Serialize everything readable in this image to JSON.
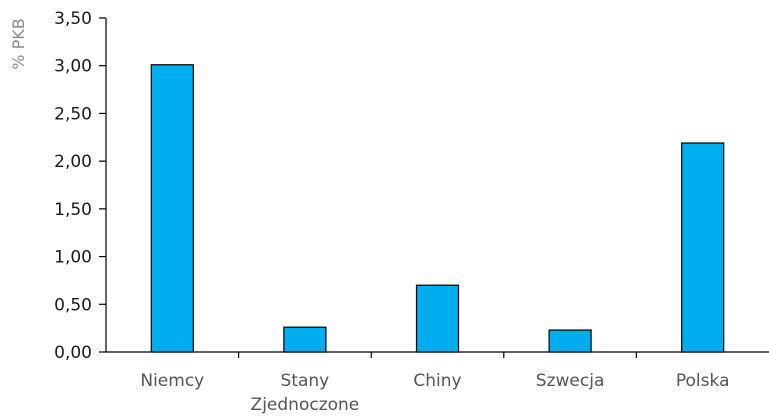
{
  "chart_data": {
    "type": "bar",
    "title": "",
    "xlabel": "",
    "ylabel": "% PKB",
    "categories": [
      "Niemcy",
      "Stany Zjednoczone",
      "Chiny",
      "Szwecja",
      "Polska"
    ],
    "category_label_lines": [
      [
        "Niemcy"
      ],
      [
        "Stany",
        "Zjednoczone"
      ],
      [
        "Chiny"
      ],
      [
        "Szwecja"
      ],
      [
        "Polska"
      ]
    ],
    "values": [
      3.01,
      0.26,
      0.7,
      0.23,
      2.19
    ],
    "ylim": [
      0,
      3.5
    ],
    "yticks": [
      0,
      0.5,
      1.0,
      1.5,
      2.0,
      2.5,
      3.0,
      3.5
    ],
    "ytick_labels": [
      "0,00",
      "0,50",
      "1,00",
      "1,50",
      "2,00",
      "2,50",
      "3,00",
      "3,50"
    ],
    "grid": false,
    "legend": "none",
    "bar_color": "#00aeef",
    "bar_edge_color": "#000000"
  }
}
